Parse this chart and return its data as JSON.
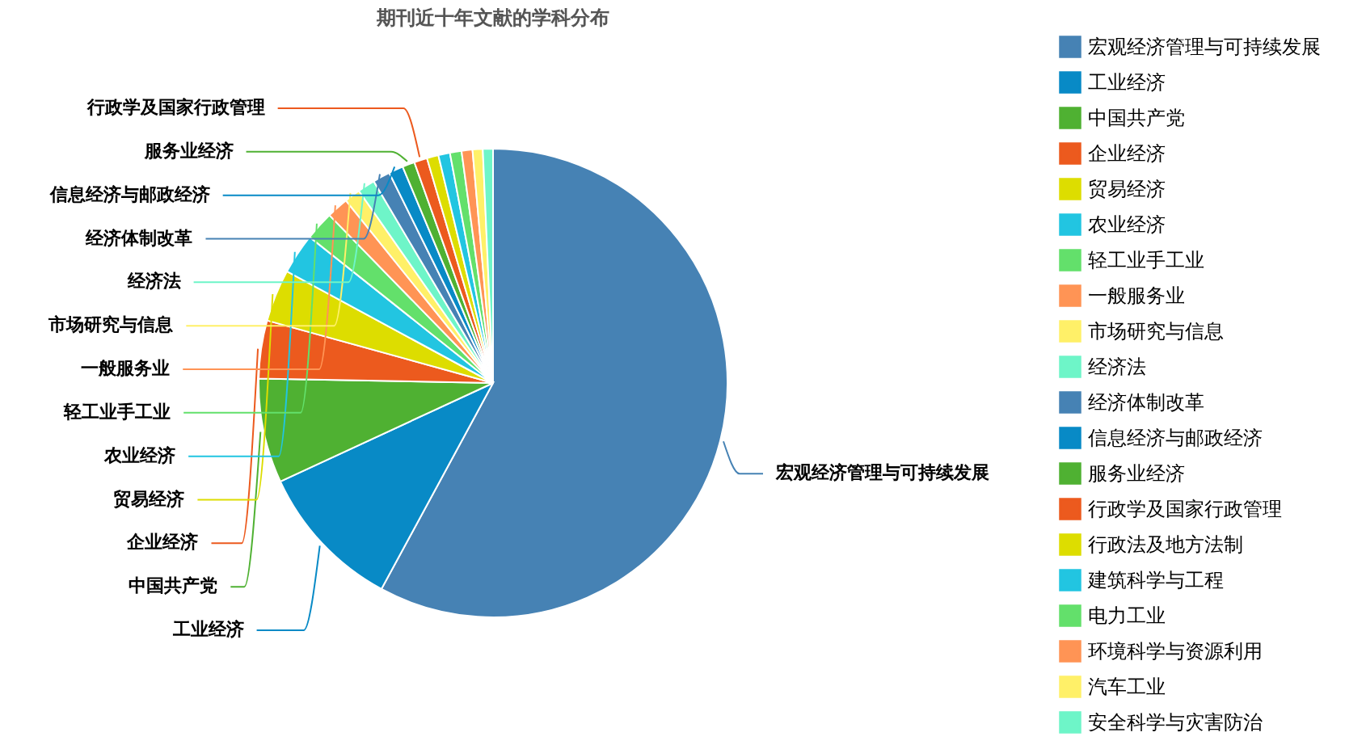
{
  "chart_data": {
    "type": "pie",
    "title": "期刊近十年文献的学科分布",
    "legend": "right",
    "categories": [
      "宏观经济管理与可持续发展",
      "工业经济",
      "中国共产党",
      "企业经济",
      "贸易经济",
      "农业经济",
      "轻工业手工业",
      "一般服务业",
      "市场研究与信息",
      "经济法",
      "经济体制改革",
      "信息经济与邮政经济",
      "服务业经济",
      "行政学及国家行政管理",
      "行政法及地方法制",
      "建筑科学与工程",
      "电力工业",
      "环境科学与资源利用",
      "汽车工业",
      "安全科学与灾害防治"
    ],
    "values": [
      57.9,
      10.2,
      7.2,
      4.0,
      3.6,
      2.8,
      2.0,
      1.5,
      1.1,
      1.2,
      1.2,
      1.0,
      0.85,
      0.9,
      0.8,
      0.8,
      0.8,
      0.75,
      0.7,
      0.7
    ],
    "colors": [
      "#4682b4",
      "#088ac6",
      "#4fb132",
      "#ec5a1e",
      "#dddd00",
      "#22c5e1",
      "#63e06b",
      "#ff9455",
      "#fff068",
      "#6ef5c8",
      "#4682b4",
      "#088ac6",
      "#4fb132",
      "#ec5a1e",
      "#dddd00",
      "#22c5e1",
      "#63e06b",
      "#ff9455",
      "#fff068",
      "#6ef5c8"
    ]
  }
}
